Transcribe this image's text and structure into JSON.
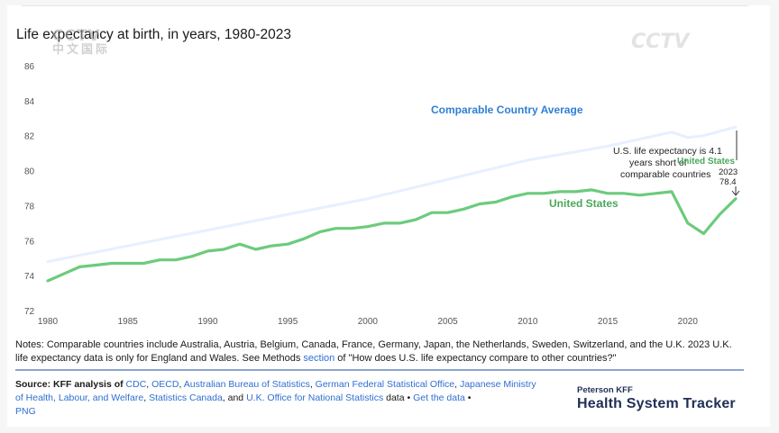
{
  "title": "Life expectancy at birth, in years, 1980-2023",
  "watermark": {
    "top": "CCTV",
    "bottom": "中文国际",
    "right": "CCTV"
  },
  "chart_data": {
    "type": "line",
    "title": "Life expectancy at birth, in years, 1980-2023",
    "xlabel": "",
    "ylabel": "",
    "xlim": [
      1980,
      2023
    ],
    "ylim": [
      72,
      86
    ],
    "x_ticks": [
      1980,
      1985,
      1990,
      1995,
      2000,
      2005,
      2010,
      2015,
      2020
    ],
    "y_ticks": [
      72,
      74,
      76,
      78,
      80,
      82,
      84,
      86
    ],
    "grid": false,
    "series": [
      {
        "name": "Comparable Country Average",
        "color": "#e6f0ff",
        "label_color": "#2e7fd6",
        "x": [
          1980,
          1990,
          2000,
          2010,
          2015,
          2019,
          2020,
          2021,
          2023
        ],
        "values": [
          74.8,
          76.6,
          78.4,
          80.6,
          81.4,
          82.2,
          81.9,
          82.0,
          82.5
        ]
      },
      {
        "name": "United States",
        "color": "#6ccb7c",
        "label_color": "#4aa85c",
        "x": [
          1980,
          1981,
          1982,
          1983,
          1984,
          1985,
          1986,
          1987,
          1988,
          1989,
          1990,
          1991,
          1992,
          1993,
          1994,
          1995,
          1996,
          1997,
          1998,
          1999,
          2000,
          2001,
          2002,
          2003,
          2004,
          2005,
          2006,
          2007,
          2008,
          2009,
          2010,
          2011,
          2012,
          2013,
          2014,
          2015,
          2016,
          2017,
          2018,
          2019,
          2020,
          2021,
          2022,
          2023
        ],
        "values": [
          73.7,
          74.1,
          74.5,
          74.6,
          74.7,
          74.7,
          74.7,
          74.9,
          74.9,
          75.1,
          75.4,
          75.5,
          75.8,
          75.5,
          75.7,
          75.8,
          76.1,
          76.5,
          76.7,
          76.7,
          76.8,
          77.0,
          77.0,
          77.2,
          77.6,
          77.6,
          77.8,
          78.1,
          78.2,
          78.5,
          78.7,
          78.7,
          78.8,
          78.8,
          78.9,
          78.7,
          78.7,
          78.6,
          78.7,
          78.8,
          77.0,
          76.4,
          77.5,
          78.4
        ]
      }
    ],
    "annotations": {
      "note_line1": "U.S. life expectancy is 4.1",
      "note_line2": "years short of",
      "note_line3": "comparable countries",
      "us_label": "United States",
      "year": "2023",
      "value": "78.4"
    }
  },
  "notes": {
    "text_before": "Notes: Comparable countries include Australia, Austria, Belgium, Canada, France, Germany, Japan, the Netherlands, Sweden, Switzerland, and the U.K. 2023 U.K. life expectancy data is only for England and Wales. See Methods ",
    "link": "section",
    "text_after": " of \"How does U.S. life expectancy compare to other countries?\""
  },
  "source": {
    "label": "Source: KFF analysis of",
    "links": [
      "CDC",
      "OECD",
      "Australian Bureau of Statistics",
      "German Federal Statistical Office",
      "Japanese Ministry of Health, Labour, and Welfare",
      "Statistics Canada",
      "U.K. Office for National Statistics"
    ],
    "data_word": "data",
    "get_data": "Get the data",
    "png": "PNG"
  },
  "brand": {
    "small": "Peterson KFF",
    "big": "Health System Tracker"
  }
}
